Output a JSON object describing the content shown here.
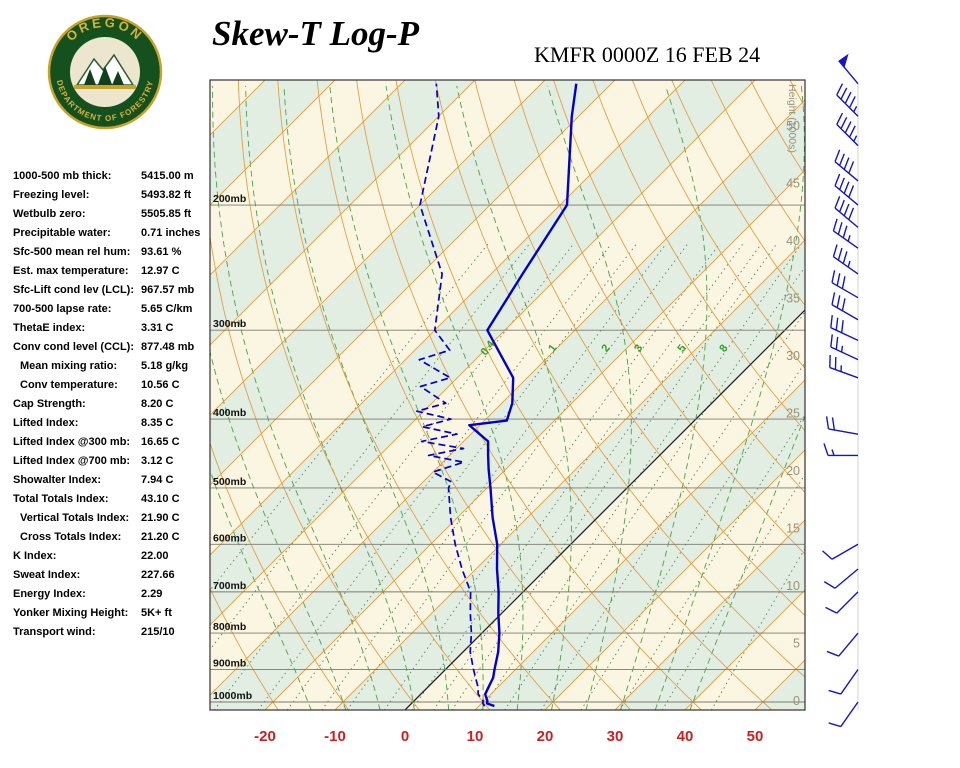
{
  "header": {
    "title": "Skew-T Log-P",
    "station_line": "KMFR 0000Z 16 FEB 24"
  },
  "logo": {
    "org_top": "OREGON",
    "org_bottom": "DEPARTMENT OF FORESTRY"
  },
  "indices": [
    {
      "label": "1000-500 mb thick:",
      "value": "5415.00 m"
    },
    {
      "label": "Freezing level:",
      "value": "5493.82 ft"
    },
    {
      "label": "Wetbulb zero:",
      "value": "5505.85 ft"
    },
    {
      "label": "Precipitable water:",
      "value": "0.71 inches"
    },
    {
      "label": "Sfc-500 mean rel hum:",
      "value": "93.61 %"
    },
    {
      "label": "Est. max temperature:",
      "value": "12.97 C"
    },
    {
      "label": "Sfc-Lift cond lev (LCL):",
      "value": "967.57 mb"
    },
    {
      "label": "700-500 lapse rate:",
      "value": "5.65 C/km"
    },
    {
      "label": "ThetaE index:",
      "value": "3.31 C"
    },
    {
      "label": "Conv cond level (CCL):",
      "value": "877.48 mb"
    },
    {
      "label": "Mean mixing ratio:",
      "value": "5.18 g/kg",
      "indent": true
    },
    {
      "label": "Conv temperature:",
      "value": "10.56 C",
      "indent": true
    },
    {
      "label": "Cap Strength:",
      "value": "8.20 C"
    },
    {
      "label": "Lifted Index:",
      "value": "8.35 C"
    },
    {
      "label": "Lifted Index @300 mb:",
      "value": "16.65 C"
    },
    {
      "label": "Lifted Index @700 mb:",
      "value": "3.12 C"
    },
    {
      "label": "Showalter Index:",
      "value": "7.94 C"
    },
    {
      "label": "Total Totals Index:",
      "value": "43.10 C"
    },
    {
      "label": "Vertical Totals Index:",
      "value": "21.90 C",
      "indent": true
    },
    {
      "label": "Cross Totals Index:",
      "value": "21.20 C",
      "indent": true
    },
    {
      "label": "K Index:",
      "value": "22.00"
    },
    {
      "label": "Sweat Index:",
      "value": "227.66"
    },
    {
      "label": "Energy Index:",
      "value": "2.29"
    },
    {
      "label": "Yonker Mixing Height:",
      "value": "5K+ ft"
    },
    {
      "label": "Transport wind:",
      "value": "215/10"
    }
  ],
  "chart_data": {
    "type": "skew-t-log-p",
    "station": "KMFR",
    "valid_time": "0000Z 16 FEB 24",
    "pressure_labels": [
      "200mb",
      "300mb",
      "400mb",
      "500mb",
      "600mb",
      "700mb",
      "800mb",
      "900mb",
      "1000mb"
    ],
    "pressure_levels_mb": [
      200,
      300,
      400,
      500,
      600,
      700,
      800,
      900,
      1000
    ],
    "temp_axis_c": [
      -20,
      -10,
      0,
      10,
      20,
      30,
      40,
      50
    ],
    "height_axis_label": "Height (1000s)",
    "height_labels_kft": [
      50,
      45,
      40,
      35,
      30,
      25,
      20,
      15,
      10,
      5,
      0
    ],
    "mixing_ratio_labels": [
      "0.4",
      "1",
      "2",
      "3",
      "5",
      "8"
    ],
    "mixing_ratio_gridlines": [
      0.1,
      0.2,
      0.4,
      0.7,
      1,
      1.5,
      2,
      3,
      4,
      5,
      6,
      8,
      10,
      14,
      20,
      28,
      40,
      60
    ],
    "temperature_profile": [
      [
        1013,
        12.2
      ],
      [
        1005,
        10.8
      ],
      [
        995,
        10.4
      ],
      [
        975,
        9.2
      ],
      [
        950,
        8.6
      ],
      [
        925,
        8
      ],
      [
        900,
        7
      ],
      [
        850,
        5
      ],
      [
        800,
        2.5
      ],
      [
        750,
        -0.5
      ],
      [
        700,
        -3.5
      ],
      [
        650,
        -7
      ],
      [
        600,
        -10.5
      ],
      [
        550,
        -15
      ],
      [
        500,
        -19.5
      ],
      [
        470,
        -22.5
      ],
      [
        450,
        -24.5
      ],
      [
        430,
        -26.5
      ],
      [
        408,
        -31.5
      ],
      [
        402,
        -26.8
      ],
      [
        380,
        -28.5
      ],
      [
        350,
        -32
      ],
      [
        300,
        -42.5
      ],
      [
        250,
        -45.5
      ],
      [
        200,
        -49
      ],
      [
        150,
        -61
      ],
      [
        135,
        -65
      ]
    ],
    "dewpoint_profile": [
      [
        1013,
        10.8
      ],
      [
        1005,
        10.2
      ],
      [
        995,
        9.8
      ],
      [
        975,
        8.2
      ],
      [
        950,
        7
      ],
      [
        925,
        5.5
      ],
      [
        900,
        4
      ],
      [
        850,
        1
      ],
      [
        800,
        -1.5
      ],
      [
        750,
        -4.5
      ],
      [
        700,
        -7.5
      ],
      [
        650,
        -12
      ],
      [
        600,
        -16.5
      ],
      [
        550,
        -21
      ],
      [
        500,
        -25.5
      ],
      [
        490,
        -26
      ],
      [
        475,
        -30
      ],
      [
        460,
        -27
      ],
      [
        450,
        -33
      ],
      [
        440,
        -29
      ],
      [
        430,
        -36
      ],
      [
        420,
        -32
      ],
      [
        410,
        -38
      ],
      [
        400,
        -35
      ],
      [
        390,
        -41
      ],
      [
        380,
        -38
      ],
      [
        360,
        -44
      ],
      [
        350,
        -41
      ],
      [
        330,
        -48
      ],
      [
        320,
        -45
      ],
      [
        300,
        -50
      ],
      [
        250,
        -57
      ],
      [
        200,
        -70
      ],
      [
        150,
        -80
      ],
      [
        135,
        -85
      ]
    ],
    "winds": [
      {
        "p": 135,
        "dir": 320,
        "spd": 50
      },
      {
        "p": 150,
        "dir": 315,
        "spd": 45
      },
      {
        "p": 165,
        "dir": 315,
        "spd": 45
      },
      {
        "p": 185,
        "dir": 310,
        "spd": 40
      },
      {
        "p": 200,
        "dir": 310,
        "spd": 40
      },
      {
        "p": 215,
        "dir": 310,
        "spd": 40
      },
      {
        "p": 230,
        "dir": 305,
        "spd": 35
      },
      {
        "p": 250,
        "dir": 305,
        "spd": 35
      },
      {
        "p": 270,
        "dir": 300,
        "spd": 30
      },
      {
        "p": 290,
        "dir": 300,
        "spd": 30
      },
      {
        "p": 310,
        "dir": 295,
        "spd": 30
      },
      {
        "p": 330,
        "dir": 295,
        "spd": 25
      },
      {
        "p": 350,
        "dir": 290,
        "spd": 25
      },
      {
        "p": 420,
        "dir": 280,
        "spd": 20
      },
      {
        "p": 450,
        "dir": 270,
        "spd": 15
      },
      {
        "p": 600,
        "dir": 240,
        "spd": 10
      },
      {
        "p": 650,
        "dir": 230,
        "spd": 10
      },
      {
        "p": 700,
        "dir": 225,
        "spd": 10
      },
      {
        "p": 800,
        "dir": 220,
        "spd": 10
      },
      {
        "p": 900,
        "dir": 215,
        "spd": 10
      },
      {
        "p": 1000,
        "dir": 215,
        "spd": 10
      }
    ],
    "colors": {
      "band_cream": "#fbf6e1",
      "band_green": "#e3eee3",
      "isotherm": "#e29b3e",
      "adiabat": "#e29b3e",
      "moist_adiabat": "#4aa04e",
      "mixing_line": "#5c7f5c",
      "mixing_label": "#2fa32f",
      "isobar": "#7a7a6e",
      "zero_isotherm": "#222222",
      "trace": "#0000cd",
      "barb": "#1515c8",
      "temp_axis": "#cc2020",
      "height_axis": "#97927b",
      "pressure_label": "#111111"
    }
  }
}
